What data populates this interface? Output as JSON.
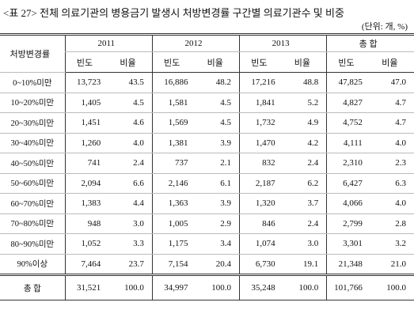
{
  "title": "<표 27> 전체 의료기관의 병용금기 발생시 처방변경률 구간별 의료기관수 및 비중",
  "unit": "(단위: 개, %)",
  "table": {
    "header": [
      "처방변경률",
      "2011",
      "2012",
      "2013",
      "총 합"
    ],
    "subheader": [
      "빈도",
      "비율",
      "빈도",
      "비율",
      "빈도",
      "비율",
      "빈도",
      "비율"
    ],
    "rows": [
      [
        "0~10%미만",
        "13,723",
        "43.5",
        "16,886",
        "48.2",
        "17,216",
        "48.8",
        "47,825",
        "47.0"
      ],
      [
        "10~20%미만",
        "1,405",
        "4.5",
        "1,581",
        "4.5",
        "1,841",
        "5.2",
        "4,827",
        "4.7"
      ],
      [
        "20~30%미만",
        "1,451",
        "4.6",
        "1,569",
        "4.5",
        "1,732",
        "4.9",
        "4,752",
        "4.7"
      ],
      [
        "30~40%미만",
        "1,260",
        "4.0",
        "1,381",
        "3.9",
        "1,470",
        "4.2",
        "4,111",
        "4.0"
      ],
      [
        "40~50%미만",
        "741",
        "2.4",
        "737",
        "2.1",
        "832",
        "2.4",
        "2,310",
        "2.3"
      ],
      [
        "50~60%미만",
        "2,094",
        "6.6",
        "2,146",
        "6.1",
        "2,187",
        "6.2",
        "6,427",
        "6.3"
      ],
      [
        "60~70%미만",
        "1,383",
        "4.4",
        "1,363",
        "3.9",
        "1,320",
        "3.7",
        "4,066",
        "4.0"
      ],
      [
        "70~80%미만",
        "948",
        "3.0",
        "1,005",
        "2.9",
        "846",
        "2.4",
        "2,799",
        "2.8"
      ],
      [
        "80~90%미만",
        "1,052",
        "3.3",
        "1,175",
        "3.4",
        "1,074",
        "3.0",
        "3,301",
        "3.2"
      ],
      [
        "90%이상",
        "7,464",
        "23.7",
        "7,154",
        "20.4",
        "6,730",
        "19.1",
        "21,348",
        "21.0"
      ]
    ],
    "total": [
      "총 합",
      "31,521",
      "100.0",
      "34,997",
      "100.0",
      "35,248",
      "100.0",
      "101,766",
      "100.0"
    ]
  }
}
